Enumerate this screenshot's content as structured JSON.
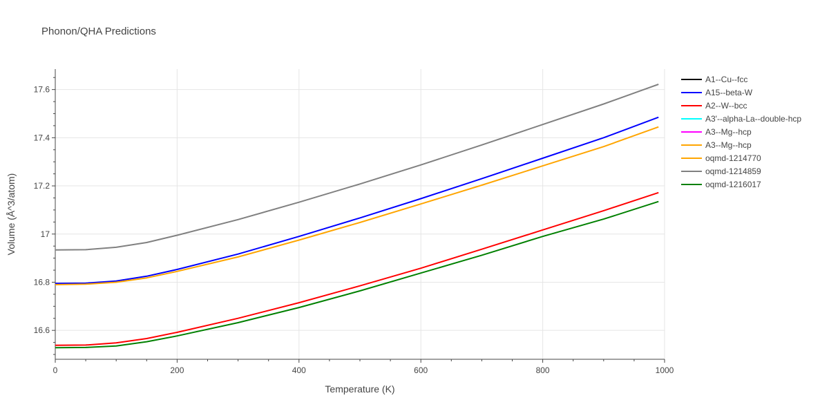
{
  "chart_data": {
    "type": "line",
    "title": "Phonon/QHA Predictions",
    "xlabel": "Temperature (K)",
    "ylabel": "Volume (Å^3/atom)",
    "xlim": [
      0,
      1000
    ],
    "ylim": [
      16.48,
      17.685
    ],
    "xticks": [
      0,
      200,
      400,
      600,
      800,
      1000
    ],
    "xtick_labels": [
      "0",
      "200",
      "400",
      "600",
      "800",
      "1000"
    ],
    "yticks": [
      16.6,
      16.8,
      17.0,
      17.2,
      17.4,
      17.6
    ],
    "ytick_labels": [
      "16.6",
      "16.8",
      "17",
      "17.2",
      "17.4",
      "17.6"
    ],
    "grid": true,
    "legend_position": "right",
    "series": [
      {
        "name": "A1--Cu--fcc",
        "color": "#000000",
        "x": [],
        "y": []
      },
      {
        "name": "A15--beta-W",
        "color": "#0000ff",
        "x": [
          0,
          50,
          100,
          150,
          200,
          300,
          400,
          500,
          600,
          700,
          800,
          900,
          990
        ],
        "y": [
          16.795,
          16.796,
          16.805,
          16.825,
          16.853,
          16.917,
          16.99,
          17.067,
          17.147,
          17.23,
          17.315,
          17.4,
          17.485
        ]
      },
      {
        "name": "A2--W--bcc",
        "color": "#ff0000",
        "x": [
          0,
          50,
          100,
          150,
          200,
          300,
          400,
          500,
          600,
          700,
          800,
          900,
          990
        ],
        "y": [
          16.538,
          16.539,
          16.548,
          16.566,
          16.592,
          16.65,
          16.715,
          16.785,
          16.858,
          16.937,
          17.017,
          17.097,
          17.172
        ]
      },
      {
        "name": "A3'--alpha-La--double-hcp",
        "color": "#00ffff",
        "x": [],
        "y": []
      },
      {
        "name": "A3--Mg--hcp",
        "color": "#ff00ff",
        "x": [],
        "y": []
      },
      {
        "name": "A3--Mg--hcp",
        "color": "#ffa500",
        "x": [
          0,
          50,
          100,
          150,
          200,
          300,
          400,
          500,
          600,
          700,
          800,
          900,
          990
        ],
        "y": [
          16.79,
          16.792,
          16.8,
          16.818,
          16.845,
          16.905,
          16.975,
          17.048,
          17.125,
          17.203,
          17.283,
          17.363,
          17.445
        ]
      },
      {
        "name": "oqmd-1214770",
        "color": "#ffa500",
        "x": [],
        "y": []
      },
      {
        "name": "oqmd-1214859",
        "color": "#808080",
        "x": [
          0,
          50,
          100,
          150,
          200,
          300,
          400,
          500,
          600,
          700,
          800,
          900,
          990
        ],
        "y": [
          16.934,
          16.935,
          16.945,
          16.965,
          16.995,
          17.06,
          17.132,
          17.208,
          17.287,
          17.37,
          17.455,
          17.54,
          17.622
        ]
      },
      {
        "name": "oqmd-1216017",
        "color": "#008000",
        "x": [
          0,
          50,
          100,
          150,
          200,
          300,
          400,
          500,
          600,
          700,
          800,
          900,
          990
        ],
        "y": [
          16.528,
          16.529,
          16.535,
          16.553,
          16.577,
          16.632,
          16.695,
          16.764,
          16.838,
          16.912,
          16.99,
          17.062,
          17.135
        ]
      }
    ]
  }
}
